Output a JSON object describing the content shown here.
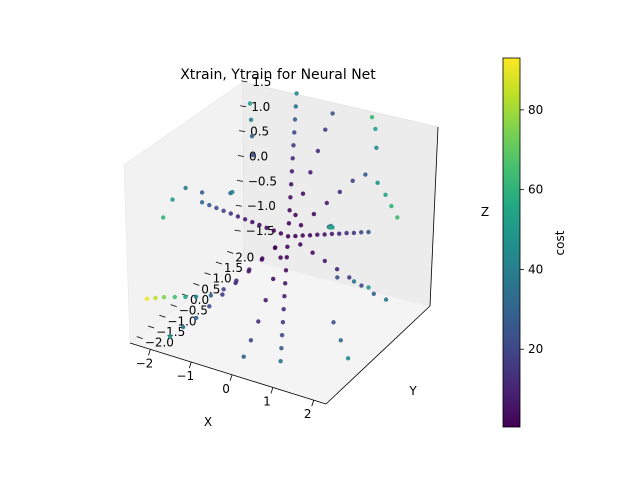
{
  "chart_data": {
    "type": "scatter",
    "projection": "3d",
    "title": "Xtrain, Ytrain for Neural Net",
    "xlabel": "X",
    "ylabel": "Y",
    "zlabel": "Z",
    "xlim": [
      -2.5,
      2.3
    ],
    "ylim": [
      -2.3,
      2.3
    ],
    "zlim": [
      -1.8,
      1.8
    ],
    "x_ticks": [
      -2,
      -1,
      0,
      1,
      2
    ],
    "x_tick_labels": [
      "−2",
      "−1",
      "0",
      "1",
      "2"
    ],
    "y_ticks": [
      -2.0,
      -1.5,
      -1.0,
      -0.5,
      0.0,
      0.5,
      1.0,
      1.5,
      2.0
    ],
    "y_tick_labels": [
      "−2.0",
      "−1.5",
      "−1.0",
      "−0.5",
      "0.0",
      "0.5",
      "1.0",
      "1.5",
      "2.0"
    ],
    "z_ticks": [
      -1.5,
      -1.0,
      -0.5,
      0.0,
      0.5,
      1.0,
      1.5
    ],
    "z_tick_labels": [
      "−1.5",
      "−1.0",
      "−0.5",
      "0.0",
      "0.5",
      "1.0",
      "1.5"
    ],
    "grid": false,
    "colormap": "viridis",
    "colorbar": {
      "label": "cost",
      "range": [
        0.5,
        93
      ],
      "ticks": [
        20,
        40,
        60,
        80
      ],
      "tick_labels": [
        "20",
        "40",
        "60",
        "80"
      ]
    },
    "points": [
      {
        "x": 0.0,
        "y": 0.0,
        "z": 0.0,
        "cost": 1.0
      },
      {
        "x": 0.15,
        "y": 0.05,
        "z": 0.02,
        "cost": 1.5
      },
      {
        "x": 0.3,
        "y": 0.1,
        "z": 0.05,
        "cost": 2.0
      },
      {
        "x": 0.45,
        "y": 0.15,
        "z": 0.07,
        "cost": 3.0
      },
      {
        "x": 0.6,
        "y": 0.2,
        "z": 0.1,
        "cost": 4.0
      },
      {
        "x": 0.75,
        "y": 0.25,
        "z": 0.12,
        "cost": 6.0
      },
      {
        "x": 0.9,
        "y": 0.3,
        "z": 0.15,
        "cost": 8.0
      },
      {
        "x": 1.05,
        "y": 0.35,
        "z": 0.17,
        "cost": 10.0
      },
      {
        "x": 1.2,
        "y": 0.4,
        "z": 0.2,
        "cost": 13.0
      },
      {
        "x": 1.35,
        "y": 0.45,
        "z": 0.22,
        "cost": 16.0
      },
      {
        "x": 1.5,
        "y": 0.5,
        "z": 0.25,
        "cost": 20.0
      },
      {
        "x": 1.65,
        "y": 0.55,
        "z": 0.27,
        "cost": 24.0
      },
      {
        "x": -0.15,
        "y": -0.05,
        "z": 0.04,
        "cost": 1.5
      },
      {
        "x": -0.3,
        "y": -0.1,
        "z": 0.08,
        "cost": 2.0
      },
      {
        "x": -0.45,
        "y": -0.15,
        "z": 0.12,
        "cost": 3.0
      },
      {
        "x": -0.6,
        "y": -0.2,
        "z": 0.16,
        "cost": 4.5
      },
      {
        "x": -0.75,
        "y": -0.25,
        "z": 0.2,
        "cost": 6.0
      },
      {
        "x": -0.9,
        "y": -0.3,
        "z": 0.24,
        "cost": 8.5
      },
      {
        "x": -1.05,
        "y": -0.35,
        "z": 0.28,
        "cost": 11.0
      },
      {
        "x": -1.2,
        "y": -0.4,
        "z": 0.32,
        "cost": 14.0
      },
      {
        "x": -1.35,
        "y": -0.45,
        "z": 0.36,
        "cost": 18.0
      },
      {
        "x": -1.5,
        "y": -0.5,
        "z": 0.4,
        "cost": 22.0
      },
      {
        "x": -1.65,
        "y": -0.55,
        "z": 0.44,
        "cost": 27.0
      },
      {
        "x": -1.8,
        "y": -0.6,
        "z": 0.48,
        "cost": 32.0
      },
      {
        "x": 0.1,
        "y": -0.2,
        "z": -0.1,
        "cost": 1.5
      },
      {
        "x": 0.2,
        "y": -0.4,
        "z": -0.2,
        "cost": 2.5
      },
      {
        "x": 0.3,
        "y": -0.6,
        "z": -0.35,
        "cost": 4.0
      },
      {
        "x": 0.4,
        "y": -0.8,
        "z": -0.5,
        "cost": 6.0
      },
      {
        "x": 0.5,
        "y": -1.0,
        "z": -0.65,
        "cost": 9.0
      },
      {
        "x": 0.6,
        "y": -1.2,
        "z": -0.8,
        "cost": 12.0
      },
      {
        "x": 0.7,
        "y": -1.4,
        "z": -0.95,
        "cost": 16.0
      },
      {
        "x": 0.8,
        "y": -1.6,
        "z": -1.1,
        "cost": 21.0
      },
      {
        "x": 0.9,
        "y": -1.8,
        "z": -1.25,
        "cost": 27.0
      },
      {
        "x": 1.0,
        "y": -2.0,
        "z": -1.4,
        "cost": 34.0
      },
      {
        "x": -0.1,
        "y": 0.2,
        "z": 0.15,
        "cost": 1.5
      },
      {
        "x": -0.2,
        "y": 0.4,
        "z": 0.3,
        "cost": 2.5
      },
      {
        "x": -0.3,
        "y": 0.6,
        "z": 0.45,
        "cost": 4.0
      },
      {
        "x": -0.4,
        "y": 0.8,
        "z": 0.6,
        "cost": 6.0
      },
      {
        "x": -0.5,
        "y": 1.0,
        "z": 0.75,
        "cost": 9.0
      },
      {
        "x": -0.6,
        "y": 1.2,
        "z": 0.9,
        "cost": 12.0
      },
      {
        "x": -0.7,
        "y": 1.4,
        "z": 1.05,
        "cost": 16.0
      },
      {
        "x": -0.8,
        "y": 1.6,
        "z": 1.2,
        "cost": 21.0
      },
      {
        "x": -0.9,
        "y": 1.8,
        "z": 1.35,
        "cost": 27.0
      },
      {
        "x": -1.0,
        "y": 2.0,
        "z": 1.5,
        "cost": 34.0
      },
      {
        "x": -1.1,
        "y": 2.2,
        "z": 1.65,
        "cost": 42.0
      },
      {
        "x": 0.2,
        "y": 0.2,
        "z": -0.2,
        "cost": 2.0
      },
      {
        "x": 0.4,
        "y": 0.4,
        "z": -0.4,
        "cost": 4.0
      },
      {
        "x": 0.6,
        "y": 0.6,
        "z": -0.6,
        "cost": 7.0
      },
      {
        "x": 0.8,
        "y": 0.8,
        "z": -0.8,
        "cost": 11.0
      },
      {
        "x": 1.0,
        "y": 1.0,
        "z": -1.0,
        "cost": 16.0
      },
      {
        "x": 1.2,
        "y": 1.2,
        "z": -1.2,
        "cost": 22.0
      },
      {
        "x": 1.4,
        "y": 1.4,
        "z": -1.4,
        "cost": 29.0
      },
      {
        "x": 1.6,
        "y": 1.6,
        "z": -1.55,
        "cost": 37.0
      },
      {
        "x": -0.2,
        "y": -0.2,
        "z": -0.2,
        "cost": 2.0
      },
      {
        "x": -0.4,
        "y": -0.4,
        "z": -0.4,
        "cost": 4.0
      },
      {
        "x": -0.6,
        "y": -0.6,
        "z": -0.6,
        "cost": 7.0
      },
      {
        "x": -0.8,
        "y": -0.8,
        "z": -0.8,
        "cost": 11.0
      },
      {
        "x": -1.0,
        "y": -1.0,
        "z": -1.0,
        "cost": 16.0
      },
      {
        "x": -1.2,
        "y": -1.2,
        "z": -1.2,
        "cost": 22.0
      },
      {
        "x": -1.4,
        "y": -1.4,
        "z": -1.4,
        "cost": 29.0
      },
      {
        "x": -1.6,
        "y": -1.6,
        "z": -1.55,
        "cost": 37.0
      },
      {
        "x": -1.8,
        "y": -1.8,
        "z": -1.7,
        "cost": 46.0
      },
      {
        "x": 0.0,
        "y": 0.3,
        "z": 0.3,
        "cost": 2.0
      },
      {
        "x": 0.0,
        "y": 0.6,
        "z": 0.6,
        "cost": 4.0
      },
      {
        "x": 0.0,
        "y": 0.9,
        "z": 0.9,
        "cost": 8.0
      },
      {
        "x": 0.0,
        "y": 1.2,
        "z": 1.2,
        "cost": 13.0
      },
      {
        "x": 0.0,
        "y": 1.5,
        "z": 1.5,
        "cost": 19.0
      },
      {
        "x": 0.0,
        "y": 1.8,
        "z": 1.7,
        "cost": 26.0
      },
      {
        "x": 0.3,
        "y": 0.0,
        "z": 0.3,
        "cost": 2.0
      },
      {
        "x": 0.6,
        "y": 0.0,
        "z": 0.6,
        "cost": 4.0
      },
      {
        "x": 0.9,
        "y": 0.0,
        "z": 0.9,
        "cost": 8.0
      },
      {
        "x": 1.2,
        "y": 0.0,
        "z": 1.2,
        "cost": 13.0
      },
      {
        "x": 1.5,
        "y": 0.0,
        "z": 1.5,
        "cost": 19.0
      },
      {
        "x": 1.8,
        "y": 0.0,
        "z": 1.7,
        "cost": 27.0
      },
      {
        "x": 2.0,
        "y": 0.2,
        "z": 1.5,
        "cost": 48.0
      },
      {
        "x": 2.1,
        "y": 0.4,
        "z": 1.2,
        "cost": 55.0
      },
      {
        "x": 2.15,
        "y": 0.6,
        "z": 0.9,
        "cost": 60.0
      },
      {
        "x": 2.2,
        "y": 0.8,
        "z": 0.6,
        "cost": 63.0
      },
      {
        "x": -0.3,
        "y": 0.0,
        "z": -0.3,
        "cost": 2.0
      },
      {
        "x": -0.6,
        "y": 0.0,
        "z": -0.6,
        "cost": 4.0
      },
      {
        "x": -0.9,
        "y": 0.0,
        "z": -0.9,
        "cost": 8.0
      },
      {
        "x": -1.2,
        "y": 0.0,
        "z": -1.2,
        "cost": 13.0
      },
      {
        "x": -1.5,
        "y": 0.0,
        "z": -1.45,
        "cost": 20.0
      },
      {
        "x": -1.8,
        "y": 0.0,
        "z": -1.65,
        "cost": 30.0
      },
      {
        "x": -2.0,
        "y": -0.3,
        "z": -1.6,
        "cost": 45.0
      },
      {
        "x": -2.1,
        "y": -0.6,
        "z": -1.5,
        "cost": 55.0
      },
      {
        "x": -2.2,
        "y": -0.9,
        "z": -1.4,
        "cost": 65.0
      },
      {
        "x": -2.3,
        "y": -1.2,
        "z": -1.3,
        "cost": 75.0
      },
      {
        "x": -2.35,
        "y": -1.5,
        "z": -1.2,
        "cost": 84.0
      },
      {
        "x": -2.4,
        "y": -1.8,
        "z": -1.1,
        "cost": 91.0
      },
      {
        "x": 0.0,
        "y": -0.3,
        "z": -0.3,
        "cost": 2.0
      },
      {
        "x": 0.0,
        "y": -0.6,
        "z": -0.6,
        "cost": 4.0
      },
      {
        "x": 0.0,
        "y": -0.9,
        "z": -0.9,
        "cost": 8.0
      },
      {
        "x": 0.0,
        "y": -1.2,
        "z": -1.2,
        "cost": 13.0
      },
      {
        "x": 0.0,
        "y": -1.5,
        "z": -1.45,
        "cost": 20.0
      },
      {
        "x": 0.0,
        "y": -1.8,
        "z": -1.65,
        "cost": 29.0
      },
      {
        "x": -1.5,
        "y": 1.0,
        "z": 1.2,
        "cost": 30.0
      },
      {
        "x": -1.7,
        "y": 1.3,
        "z": 1.35,
        "cost": 40.0
      },
      {
        "x": -1.9,
        "y": 1.6,
        "z": 1.5,
        "cost": 52.0
      },
      {
        "x": -1.3,
        "y": 0.7,
        "z": 1.0,
        "cost": 22.0
      },
      {
        "x": 1.5,
        "y": -1.0,
        "z": 1.0,
        "cost": 25.0
      },
      {
        "x": 1.7,
        "y": -1.3,
        "z": 1.2,
        "cost": 35.0
      },
      {
        "x": 1.9,
        "y": -1.6,
        "z": 1.35,
        "cost": 47.0
      },
      {
        "x": 2.0,
        "y": -1.9,
        "z": 1.5,
        "cost": 58.0
      },
      {
        "x": 1.2,
        "y": 1.6,
        "z": 1.4,
        "cost": 45.0
      },
      {
        "x": 1.0,
        "y": 1.9,
        "z": 1.6,
        "cost": 55.0
      },
      {
        "x": 0.8,
        "y": 2.1,
        "z": 1.7,
        "cost": 62.0
      },
      {
        "x": -1.6,
        "y": -1.0,
        "z": 0.9,
        "cost": 28.0
      },
      {
        "x": -1.9,
        "y": -1.2,
        "z": 1.0,
        "cost": 38.0
      },
      {
        "x": -2.1,
        "y": -1.4,
        "z": 0.8,
        "cost": 50.0
      },
      {
        "x": -2.2,
        "y": -1.6,
        "z": 0.5,
        "cost": 60.0
      },
      {
        "x": 1.4,
        "y": -0.4,
        "z": -1.2,
        "cost": 22.0
      },
      {
        "x": 1.7,
        "y": -0.6,
        "z": -1.4,
        "cost": 32.0
      },
      {
        "x": 2.0,
        "y": -0.8,
        "z": -1.6,
        "cost": 44.0
      },
      {
        "x": -0.6,
        "y": -1.6,
        "z": 1.4,
        "cost": 30.0
      },
      {
        "x": -0.4,
        "y": -1.9,
        "z": 1.6,
        "cost": 42.0
      },
      {
        "x": 0.5,
        "y": 1.4,
        "z": -1.3,
        "cost": 24.0
      },
      {
        "x": 0.7,
        "y": 1.8,
        "z": -1.5,
        "cost": 36.0
      },
      {
        "x": 0.9,
        "y": 2.1,
        "z": -1.7,
        "cost": 50.0
      }
    ]
  }
}
